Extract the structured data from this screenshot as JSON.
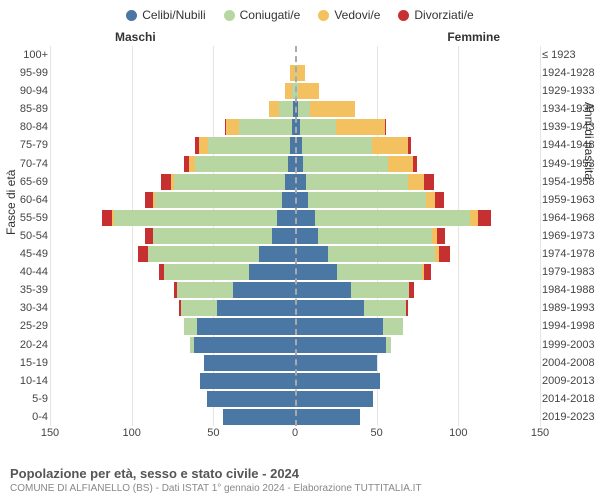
{
  "chart": {
    "type": "population-pyramid",
    "legend": [
      {
        "label": "Celibi/Nubili",
        "color": "#4a77a4"
      },
      {
        "label": "Coniugati/e",
        "color": "#b8d6a2"
      },
      {
        "label": "Vedovi/e",
        "color": "#f3c15f"
      },
      {
        "label": "Divorziati/e",
        "color": "#c73030"
      }
    ],
    "header_male": "Maschi",
    "header_female": "Femmine",
    "y_axis_left_title": "Fasce di età",
    "y_axis_right_title": "Anni di nascita",
    "x_ticks": [
      150,
      100,
      50,
      0,
      50,
      100,
      150
    ],
    "x_max": 150,
    "grid_color": "#e5e5e5",
    "center_line_color": "#aaaaaa",
    "background_color": "#ffffff",
    "tick_fontsize": 11,
    "label_fontsize": 12,
    "age_groups": [
      {
        "age": "100+",
        "birth": "≤ 1923",
        "m": [
          0,
          0,
          0,
          0
        ],
        "f": [
          0,
          0,
          0,
          0
        ]
      },
      {
        "age": "95-99",
        "birth": "1924-1928",
        "m": [
          0,
          0,
          3,
          0
        ],
        "f": [
          0,
          1,
          5,
          0
        ]
      },
      {
        "age": "90-94",
        "birth": "1929-1933",
        "m": [
          0,
          2,
          4,
          0
        ],
        "f": [
          0,
          2,
          13,
          0
        ]
      },
      {
        "age": "85-89",
        "birth": "1934-1938",
        "m": [
          1,
          9,
          6,
          0
        ],
        "f": [
          2,
          7,
          28,
          0
        ]
      },
      {
        "age": "80-84",
        "birth": "1939-1943",
        "m": [
          2,
          32,
          8,
          1
        ],
        "f": [
          3,
          22,
          30,
          1
        ]
      },
      {
        "age": "75-79",
        "birth": "1944-1948",
        "m": [
          3,
          50,
          6,
          2
        ],
        "f": [
          4,
          43,
          22,
          2
        ]
      },
      {
        "age": "70-74",
        "birth": "1949-1953",
        "m": [
          4,
          57,
          4,
          3
        ],
        "f": [
          5,
          52,
          15,
          3
        ]
      },
      {
        "age": "65-69",
        "birth": "1954-1958",
        "m": [
          6,
          68,
          2,
          6
        ],
        "f": [
          7,
          62,
          10,
          6
        ]
      },
      {
        "age": "60-64",
        "birth": "1959-1963",
        "m": [
          8,
          78,
          1,
          5
        ],
        "f": [
          8,
          72,
          6,
          5
        ]
      },
      {
        "age": "55-59",
        "birth": "1964-1968",
        "m": [
          11,
          100,
          1,
          6
        ],
        "f": [
          12,
          95,
          5,
          8
        ]
      },
      {
        "age": "50-54",
        "birth": "1969-1973",
        "m": [
          14,
          73,
          0,
          5
        ],
        "f": [
          14,
          70,
          3,
          5
        ]
      },
      {
        "age": "45-49",
        "birth": "1974-1978",
        "m": [
          22,
          68,
          0,
          6
        ],
        "f": [
          20,
          66,
          2,
          7
        ]
      },
      {
        "age": "40-44",
        "birth": "1979-1983",
        "m": [
          28,
          52,
          0,
          3
        ],
        "f": [
          26,
          52,
          1,
          4
        ]
      },
      {
        "age": "35-39",
        "birth": "1984-1988",
        "m": [
          38,
          34,
          0,
          2
        ],
        "f": [
          34,
          36,
          0,
          3
        ]
      },
      {
        "age": "30-34",
        "birth": "1989-1993",
        "m": [
          48,
          22,
          0,
          1
        ],
        "f": [
          42,
          26,
          0,
          1
        ]
      },
      {
        "age": "25-29",
        "birth": "1994-1998",
        "m": [
          60,
          8,
          0,
          0
        ],
        "f": [
          54,
          12,
          0,
          0
        ]
      },
      {
        "age": "20-24",
        "birth": "1999-2003",
        "m": [
          62,
          2,
          0,
          0
        ],
        "f": [
          56,
          3,
          0,
          0
        ]
      },
      {
        "age": "15-19",
        "birth": "2004-2008",
        "m": [
          56,
          0,
          0,
          0
        ],
        "f": [
          50,
          0,
          0,
          0
        ]
      },
      {
        "age": "10-14",
        "birth": "2009-2013",
        "m": [
          58,
          0,
          0,
          0
        ],
        "f": [
          52,
          0,
          0,
          0
        ]
      },
      {
        "age": "5-9",
        "birth": "2014-2018",
        "m": [
          54,
          0,
          0,
          0
        ],
        "f": [
          48,
          0,
          0,
          0
        ]
      },
      {
        "age": "0-4",
        "birth": "2019-2023",
        "m": [
          44,
          0,
          0,
          0
        ],
        "f": [
          40,
          0,
          0,
          0
        ]
      }
    ],
    "title": "Popolazione per età, sesso e stato civile - 2024",
    "subtitle": "COMUNE DI ALFIANELLO (BS) - Dati ISTAT 1° gennaio 2024 - Elaborazione TUTTITALIA.IT"
  }
}
